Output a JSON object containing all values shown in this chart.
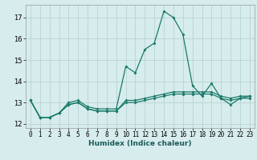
{
  "title": "",
  "xlabel": "Humidex (Indice chaleur)",
  "ylabel": "",
  "background_color": "#d7ecec",
  "grid_color": "#b8d4d4",
  "line_color": "#1a7a6a",
  "x_values": [
    0,
    1,
    2,
    3,
    4,
    5,
    6,
    7,
    8,
    9,
    10,
    11,
    12,
    13,
    14,
    15,
    16,
    17,
    18,
    19,
    20,
    21,
    22,
    23
  ],
  "series": [
    [
      13.1,
      12.3,
      12.3,
      12.5,
      13.0,
      13.1,
      12.8,
      12.7,
      12.7,
      12.7,
      14.7,
      14.4,
      15.5,
      15.8,
      17.3,
      17.0,
      16.2,
      13.8,
      13.3,
      13.9,
      13.2,
      12.9,
      13.2,
      13.3
    ],
    [
      13.1,
      12.3,
      12.3,
      12.5,
      12.9,
      13.0,
      12.7,
      12.6,
      12.6,
      12.6,
      13.1,
      13.1,
      13.2,
      13.3,
      13.4,
      13.5,
      13.5,
      13.5,
      13.5,
      13.5,
      13.3,
      13.2,
      13.3,
      13.3
    ],
    [
      13.1,
      12.3,
      12.3,
      12.5,
      12.9,
      13.0,
      12.7,
      12.6,
      12.6,
      12.6,
      13.0,
      13.0,
      13.1,
      13.2,
      13.3,
      13.4,
      13.4,
      13.4,
      13.4,
      13.4,
      13.2,
      13.1,
      13.2,
      13.2
    ]
  ],
  "ylim": [
    11.8,
    17.6
  ],
  "yticks": [
    12,
    13,
    14,
    15,
    16,
    17
  ],
  "xlim": [
    -0.5,
    23.5
  ],
  "xticks": [
    0,
    1,
    2,
    3,
    4,
    5,
    6,
    7,
    8,
    9,
    10,
    11,
    12,
    13,
    14,
    15,
    16,
    17,
    18,
    19,
    20,
    21,
    22,
    23
  ],
  "tick_fontsize": 5.5,
  "xlabel_fontsize": 6.5,
  "xlabel_color": "#1a5a5a",
  "marker_size": 2.0,
  "line_width": 0.9
}
